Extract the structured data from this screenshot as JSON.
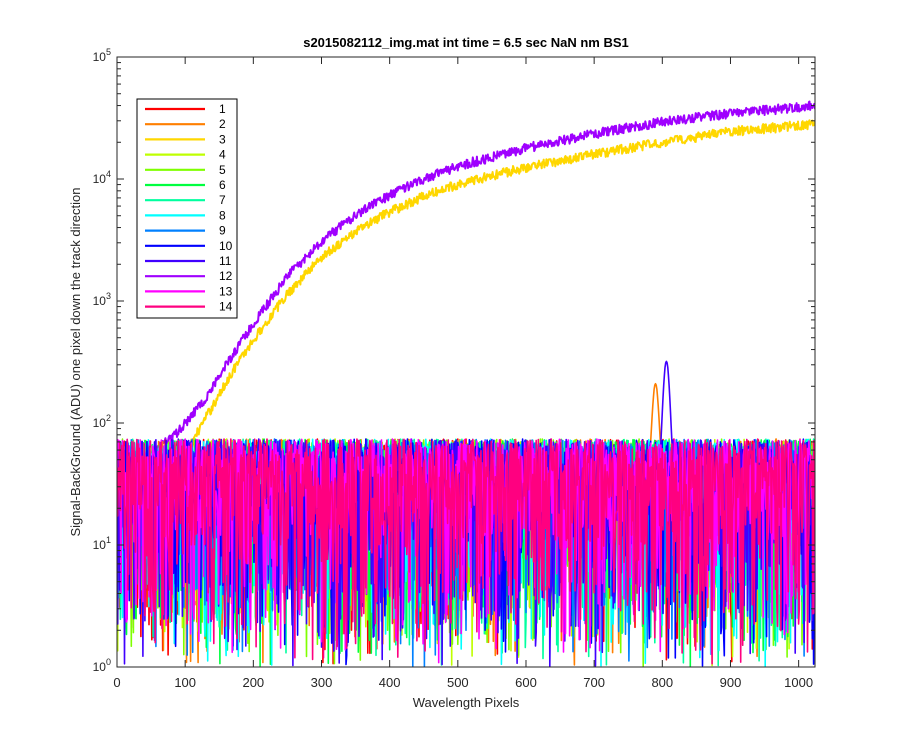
{
  "chart_data": {
    "type": "line",
    "title": "s2015082112_img.mat int time = 6.5 sec  NaN nm BS1",
    "xlabel": "Wavelength Pixels",
    "ylabel": "Signal-BackGround (ADU) one pixel down the track direction",
    "xlim": [
      0,
      1024
    ],
    "ylim": [
      1,
      100000
    ],
    "yscale": "log",
    "grid": false,
    "legend_position": "top-left",
    "xticks": [
      0,
      100,
      200,
      300,
      400,
      500,
      600,
      700,
      800,
      900,
      1000
    ],
    "xtick_labels": [
      "0",
      "100",
      "200",
      "300",
      "400",
      "500",
      "600",
      "700",
      "800",
      "900",
      "1000"
    ],
    "yticks": [
      1,
      10,
      100,
      1000,
      10000,
      100000
    ],
    "ytick_labels": [
      {
        "base": "10",
        "exp": "0"
      },
      {
        "base": "10",
        "exp": "1"
      },
      {
        "base": "10",
        "exp": "2"
      },
      {
        "base": "10",
        "exp": "3"
      },
      {
        "base": "10",
        "exp": "4"
      },
      {
        "base": "10",
        "exp": "5"
      }
    ],
    "series": [
      {
        "name": "1",
        "color": "#ff0000",
        "kind": "noise"
      },
      {
        "name": "2",
        "color": "#ff7f00",
        "kind": "noise_peak",
        "peak": {
          "x": 790,
          "y": 170
        }
      },
      {
        "name": "3",
        "color": "#ffd700",
        "kind": "rising",
        "points": [
          [
            100,
            55
          ],
          [
            110,
            70
          ],
          [
            130,
            110
          ],
          [
            150,
            170
          ],
          [
            170,
            270
          ],
          [
            200,
            480
          ],
          [
            250,
            1150
          ],
          [
            300,
            2300
          ],
          [
            350,
            3700
          ],
          [
            400,
            5400
          ],
          [
            450,
            7200
          ],
          [
            500,
            9100
          ],
          [
            600,
            12500
          ],
          [
            700,
            16000
          ],
          [
            800,
            20000
          ],
          [
            900,
            24500
          ],
          [
            1000,
            27500
          ],
          [
            1024,
            28500
          ]
        ]
      },
      {
        "name": "4",
        "color": "#bfff00",
        "kind": "noise"
      },
      {
        "name": "5",
        "color": "#7fff00",
        "kind": "noise"
      },
      {
        "name": "6",
        "color": "#00ff40",
        "kind": "noise"
      },
      {
        "name": "7",
        "color": "#00ff9f",
        "kind": "noise"
      },
      {
        "name": "8",
        "color": "#00ffff",
        "kind": "noise"
      },
      {
        "name": "9",
        "color": "#0080ff",
        "kind": "noise"
      },
      {
        "name": "10",
        "color": "#0000ff",
        "kind": "noise"
      },
      {
        "name": "11",
        "color": "#4000ff",
        "kind": "noise_peak",
        "peak": {
          "x": 806,
          "y": 280
        }
      },
      {
        "name": "12",
        "color": "#9f00ff",
        "kind": "rising",
        "points": [
          [
            55,
            60
          ],
          [
            80,
            75
          ],
          [
            100,
            100
          ],
          [
            130,
            160
          ],
          [
            160,
            300
          ],
          [
            200,
            650
          ],
          [
            250,
            1600
          ],
          [
            300,
            3100
          ],
          [
            350,
            5100
          ],
          [
            400,
            7400
          ],
          [
            450,
            10000
          ],
          [
            500,
            12800
          ],
          [
            600,
            18000
          ],
          [
            700,
            23500
          ],
          [
            800,
            29500
          ],
          [
            900,
            34500
          ],
          [
            1000,
            39000
          ],
          [
            1024,
            40500
          ]
        ]
      },
      {
        "name": "13",
        "color": "#ff00ff",
        "kind": "noise"
      },
      {
        "name": "14",
        "color": "#ff0080",
        "kind": "noise"
      }
    ]
  }
}
